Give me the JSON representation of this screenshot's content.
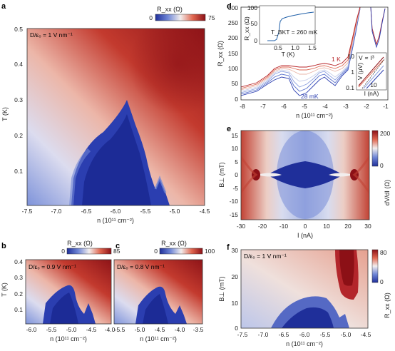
{
  "panels": {
    "a": {
      "label": "a",
      "annotation": "D/ε₀ = 1 V nm⁻¹",
      "colorbar": {
        "title": "R_xx (Ω)",
        "min": "0",
        "max": "75"
      },
      "xlabel": "n (10¹¹ cm⁻²)",
      "ylabel": "T (K)",
      "xticks": [
        "-7.5",
        "-7.0",
        "-6.5",
        "-6.0",
        "-5.5",
        "-5.0",
        "-4.5"
      ],
      "yticks": [
        "0.5",
        "0.4",
        "0.3",
        "0.2",
        "0.1"
      ]
    },
    "b": {
      "label": "b",
      "annotation": "D/ε₀ = 0.9 V nm⁻¹",
      "colorbar": {
        "title": "R_xx (Ω)",
        "min": "0",
        "max": "85"
      },
      "xlabel": "n (10¹¹ cm⁻²)",
      "ylabel": "T (K)",
      "xticks": [
        "-6.0",
        "-5.5",
        "-5.0",
        "-4.5",
        "-4.0"
      ],
      "yticks": [
        "0.4",
        "0.3",
        "0.2",
        "0.1"
      ]
    },
    "c": {
      "label": "c",
      "annotation": "D/ε₀ = 0.8 V nm⁻¹",
      "colorbar": {
        "title": "R_xx (Ω)",
        "min": "0",
        "max": "100"
      },
      "xlabel": "n (10¹¹ cm⁻²)",
      "xticks": [
        "-5.5",
        "-5.0",
        "-4.5",
        "-4.0",
        "-3.5"
      ]
    },
    "d": {
      "label": "d",
      "ylabel": "R_xx (Ω)",
      "xlabel": "n (10¹¹ cm⁻²)",
      "xticks": [
        "-8",
        "-7",
        "-6",
        "-5",
        "-4",
        "-3",
        "-2",
        "-1"
      ],
      "yticks": [
        "300",
        "250",
        "200",
        "150",
        "100",
        "50",
        "0"
      ],
      "label_hot": "1 K",
      "label_cold": "28 mK",
      "inset1": {
        "ylabel": "R_xx (Ω)",
        "xlabel": "T (K)",
        "xticks": [
          "0.5",
          "1.0",
          "1.5"
        ],
        "yticks": [
          "100",
          "50",
          "0"
        ],
        "annotation": "T_BKT = 260 mK"
      },
      "inset2": {
        "ylabel": "V (μV)",
        "xlabel": "I (nA)",
        "annotation": "V ∝ I³",
        "xticks": [
          "10"
        ],
        "yticks": [
          "10",
          "1",
          "0.1"
        ]
      }
    },
    "e": {
      "label": "e",
      "ylabel": "B⊥ (mT)",
      "xlabel": "I (nA)",
      "xticks": [
        "-30",
        "-20",
        "-10",
        "0",
        "10",
        "20",
        "30"
      ],
      "yticks": [
        "15",
        "10",
        "5",
        "0",
        "-5",
        "-10",
        "-15"
      ],
      "colorbar": {
        "title": "dV/dI (Ω)",
        "min": "0",
        "max": "200"
      }
    },
    "f": {
      "label": "f",
      "annotation": "D/ε₀ = 1 V nm⁻¹",
      "ylabel": "B⊥ (mT)",
      "xlabel": "n (10¹¹ cm⁻²)",
      "xticks": [
        "-7.5",
        "-7.0",
        "-6.5",
        "-6.0",
        "-5.5",
        "-5.0",
        "-4.5"
      ],
      "yticks": [
        "30",
        "20",
        "10",
        "0"
      ],
      "colorbar": {
        "title": "R_xx (Ω)",
        "min": "0",
        "max": "80"
      }
    }
  }
}
